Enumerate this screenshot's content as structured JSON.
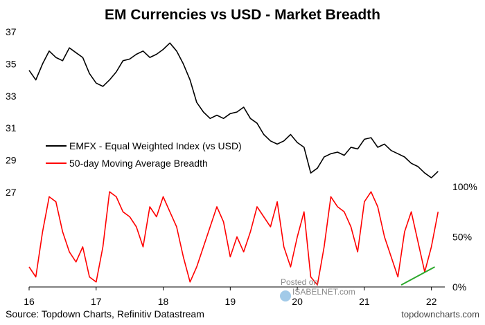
{
  "chart_data": {
    "type": "line",
    "title": "EM Currencies vs USD - Market Breadth",
    "x_ticks": [
      "16",
      "17",
      "18",
      "19",
      "20",
      "21",
      "22"
    ],
    "left_axis": {
      "ticks": [
        "37",
        "35",
        "33",
        "31",
        "29",
        "27"
      ],
      "ylim": [
        27,
        37
      ]
    },
    "right_axis": {
      "ticks": [
        "100%",
        "50%",
        "0%"
      ],
      "ylim": [
        0,
        100
      ]
    },
    "series": [
      {
        "name": "EMFX - Equal Weighted Index (vs USD)",
        "axis": "left",
        "color": "#000000",
        "x": [
          2016.0,
          2016.1,
          2016.2,
          2016.3,
          2016.4,
          2016.5,
          2016.6,
          2016.7,
          2016.8,
          2016.9,
          2017.0,
          2017.1,
          2017.2,
          2017.3,
          2017.4,
          2017.5,
          2017.6,
          2017.7,
          2017.8,
          2017.9,
          2018.0,
          2018.1,
          2018.2,
          2018.3,
          2018.4,
          2018.5,
          2018.6,
          2018.7,
          2018.8,
          2018.9,
          2019.0,
          2019.1,
          2019.2,
          2019.3,
          2019.4,
          2019.5,
          2019.6,
          2019.7,
          2019.8,
          2019.9,
          2020.0,
          2020.1,
          2020.2,
          2020.3,
          2020.4,
          2020.5,
          2020.6,
          2020.7,
          2020.8,
          2020.9,
          2021.0,
          2021.1,
          2021.2,
          2021.3,
          2021.4,
          2021.5,
          2021.6,
          2021.7,
          2021.8,
          2021.9,
          2022.0,
          2022.1
        ],
        "values": [
          34.6,
          34.0,
          35.0,
          35.8,
          35.4,
          35.2,
          36.0,
          35.7,
          35.4,
          34.4,
          33.8,
          33.6,
          34.0,
          34.5,
          35.2,
          35.3,
          35.6,
          35.8,
          35.4,
          35.6,
          35.9,
          36.3,
          35.8,
          35.0,
          34.0,
          32.6,
          32.0,
          31.6,
          31.8,
          31.6,
          31.9,
          32.0,
          32.3,
          31.6,
          31.3,
          30.6,
          30.2,
          30.0,
          30.2,
          30.6,
          30.1,
          29.8,
          28.2,
          28.5,
          29.2,
          29.4,
          29.5,
          29.3,
          29.8,
          29.7,
          30.3,
          30.4,
          29.8,
          30.0,
          29.6,
          29.4,
          29.2,
          28.8,
          28.6,
          28.2,
          27.9,
          28.3
        ]
      },
      {
        "name": "50-day Moving Average Breadth",
        "axis": "right",
        "color": "#ff0000",
        "x": [
          2016.0,
          2016.1,
          2016.2,
          2016.3,
          2016.4,
          2016.5,
          2016.6,
          2016.7,
          2016.8,
          2016.9,
          2017.0,
          2017.1,
          2017.2,
          2017.3,
          2017.4,
          2017.5,
          2017.6,
          2017.7,
          2017.8,
          2017.9,
          2018.0,
          2018.1,
          2018.2,
          2018.3,
          2018.4,
          2018.5,
          2018.6,
          2018.7,
          2018.8,
          2018.9,
          2019.0,
          2019.1,
          2019.2,
          2019.3,
          2019.4,
          2019.5,
          2019.6,
          2019.7,
          2019.8,
          2019.9,
          2020.0,
          2020.1,
          2020.2,
          2020.3,
          2020.4,
          2020.5,
          2020.6,
          2020.7,
          2020.8,
          2020.9,
          2021.0,
          2021.1,
          2021.2,
          2021.3,
          2021.4,
          2021.5,
          2021.6,
          2021.7,
          2021.8,
          2021.9,
          2022.0,
          2022.1
        ],
        "values": [
          20,
          10,
          55,
          90,
          85,
          55,
          35,
          25,
          40,
          10,
          5,
          40,
          95,
          90,
          75,
          70,
          60,
          40,
          80,
          70,
          90,
          75,
          60,
          30,
          5,
          20,
          40,
          60,
          80,
          65,
          30,
          50,
          35,
          55,
          80,
          70,
          60,
          85,
          40,
          20,
          50,
          75,
          10,
          2,
          40,
          90,
          80,
          75,
          60,
          35,
          85,
          95,
          80,
          50,
          30,
          10,
          55,
          75,
          45,
          15,
          40,
          75
        ]
      }
    ],
    "annotations": [
      {
        "type": "trendline",
        "color": "#2ca82c",
        "x": [
          2021.55,
          2022.05
        ],
        "values": [
          2,
          20
        ]
      }
    ]
  },
  "footer": {
    "source": "Source: Topdown Charts, Refinitiv Datastream",
    "credit": "topdowncharts.com"
  },
  "watermark": {
    "posted_on": "Posted on",
    "brand": "ISABELNET.com"
  }
}
